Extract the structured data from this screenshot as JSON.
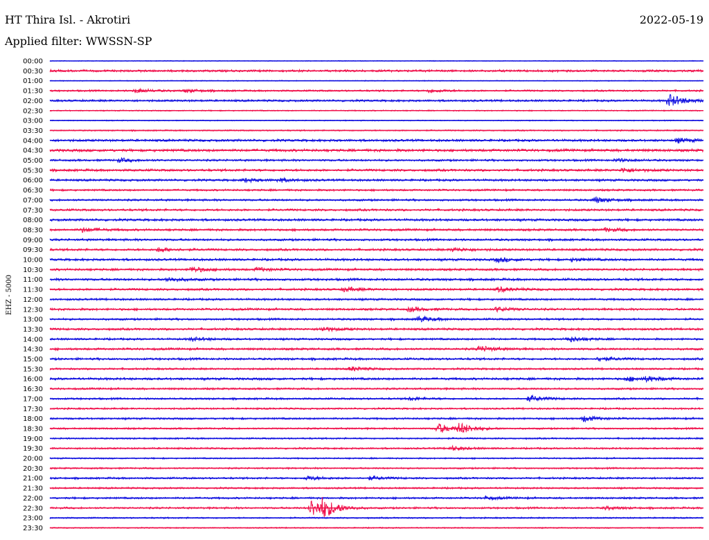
{
  "header": {
    "station": "HT Thira Isl. - Akrotiri",
    "date": "2022-05-19",
    "filter": "Applied filter: WWSSN-SP"
  },
  "chart_data": {
    "type": "line",
    "title": "HT Thira Isl. - Akrotiri",
    "ylabel": "EHZ - 5000",
    "xlabel": "",
    "colors": {
      "even": "#1010e0",
      "odd": "#f0124c"
    },
    "rows": [
      "00:00",
      "00:30",
      "01:00",
      "01:30",
      "02:00",
      "02:30",
      "03:00",
      "03:30",
      "04:00",
      "04:30",
      "05:00",
      "05:30",
      "06:00",
      "06:30",
      "07:00",
      "07:30",
      "08:00",
      "08:30",
      "09:00",
      "09:30",
      "10:00",
      "10:30",
      "11:00",
      "11:30",
      "12:00",
      "12:30",
      "13:00",
      "13:30",
      "14:00",
      "14:30",
      "15:00",
      "15:30",
      "16:00",
      "16:30",
      "17:00",
      "17:30",
      "18:00",
      "18:30",
      "19:00",
      "19:30",
      "20:00",
      "20:30",
      "21:00",
      "21:30",
      "22:00",
      "22:30",
      "23:00",
      "23:30"
    ],
    "noise": [
      0.5,
      1.5,
      0.6,
      1.2,
      1.4,
      0.8,
      0.7,
      0.9,
      1.6,
      1.8,
      1.4,
      1.6,
      1.5,
      1.3,
      1.4,
      1.5,
      1.6,
      1.5,
      1.5,
      1.5,
      1.6,
      1.5,
      1.6,
      1.5,
      1.4,
      1.5,
      1.4,
      1.5,
      1.4,
      1.5,
      1.5,
      1.3,
      1.6,
      1.3,
      1.3,
      1.2,
      1.3,
      1.2,
      1.1,
      1.2,
      1.0,
      1.1,
      1.3,
      1.2,
      1.3,
      1.3,
      1.0,
      0.8
    ],
    "events": [
      {
        "row": "01:30",
        "t": 3.93,
        "amp": 3
      },
      {
        "row": "01:30",
        "t": 6.22,
        "amp": 2.5
      },
      {
        "row": "01:30",
        "t": 17.4,
        "amp": 2.5
      },
      {
        "row": "02:00",
        "t": 28.4,
        "amp": 9
      },
      {
        "row": "04:00",
        "t": 28.8,
        "amp": 3
      },
      {
        "row": "05:00",
        "t": 3.2,
        "amp": 2.5
      },
      {
        "row": "05:00",
        "t": 26.0,
        "amp": 2
      },
      {
        "row": "05:30",
        "t": 26.3,
        "amp": 3
      },
      {
        "row": "06:00",
        "t": 8.9,
        "amp": 2.5
      },
      {
        "row": "06:00",
        "t": 10.5,
        "amp": 2.5
      },
      {
        "row": "07:00",
        "t": 25.0,
        "amp": 4
      },
      {
        "row": "08:30",
        "t": 1.5,
        "amp": 3
      },
      {
        "row": "08:30",
        "t": 25.5,
        "amp": 2.5
      },
      {
        "row": "09:30",
        "t": 5.0,
        "amp": 3
      },
      {
        "row": "09:30",
        "t": 18.5,
        "amp": 2.5
      },
      {
        "row": "10:00",
        "t": 20.5,
        "amp": 3
      },
      {
        "row": "10:00",
        "t": 24.0,
        "amp": 2
      },
      {
        "row": "10:30",
        "t": 6.5,
        "amp": 4
      },
      {
        "row": "10:30",
        "t": 9.5,
        "amp": 2.5
      },
      {
        "row": "11:00",
        "t": 5.4,
        "amp": 3
      },
      {
        "row": "11:30",
        "t": 13.5,
        "amp": 3
      },
      {
        "row": "11:30",
        "t": 20.6,
        "amp": 3
      },
      {
        "row": "12:30",
        "t": 16.5,
        "amp": 3
      },
      {
        "row": "12:30",
        "t": 20.5,
        "amp": 3
      },
      {
        "row": "13:00",
        "t": 16.9,
        "amp": 4
      },
      {
        "row": "13:30",
        "t": 12.5,
        "amp": 3
      },
      {
        "row": "14:00",
        "t": 6.5,
        "amp": 2.5
      },
      {
        "row": "14:00",
        "t": 23.8,
        "amp": 4
      },
      {
        "row": "14:30",
        "t": 19.7,
        "amp": 4
      },
      {
        "row": "15:00",
        "t": 25.2,
        "amp": 3
      },
      {
        "row": "15:30",
        "t": 13.8,
        "amp": 3
      },
      {
        "row": "16:00",
        "t": 26.5,
        "amp": 3
      },
      {
        "row": "16:00",
        "t": 27.4,
        "amp": 3
      },
      {
        "row": "17:00",
        "t": 22.0,
        "amp": 4
      },
      {
        "row": "17:00",
        "t": 16.5,
        "amp": 2
      },
      {
        "row": "18:00",
        "t": 24.5,
        "amp": 4
      },
      {
        "row": "18:30",
        "t": 17.8,
        "amp": 7
      },
      {
        "row": "18:30",
        "t": 18.8,
        "amp": 7
      },
      {
        "row": "19:30",
        "t": 18.4,
        "amp": 3
      },
      {
        "row": "21:00",
        "t": 11.8,
        "amp": 3
      },
      {
        "row": "21:00",
        "t": 14.7,
        "amp": 2.5
      },
      {
        "row": "22:00",
        "t": 20.0,
        "amp": 2
      },
      {
        "row": "22:30",
        "t": 12.0,
        "amp": 13
      },
      {
        "row": "22:30",
        "t": 12.5,
        "amp": 10
      },
      {
        "row": "22:30",
        "t": 25.5,
        "amp": 2
      }
    ]
  }
}
